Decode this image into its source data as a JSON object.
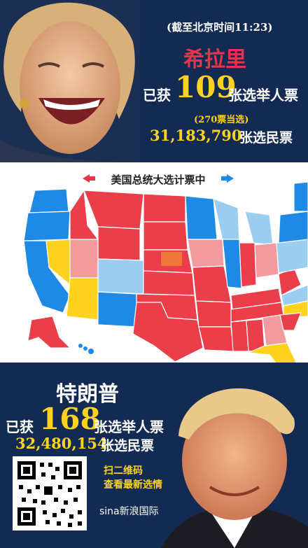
{
  "top": {
    "time_note": "(截至北京时间11:23)",
    "candidate": "希拉里",
    "electoral_prefix": "已获",
    "electoral_votes": "109",
    "electoral_suffix": "张选举人票",
    "threshold_note": "(270票当选)",
    "popular_votes": "31,183,790",
    "popular_suffix": "张选民票"
  },
  "map": {
    "title": "美国总统大选计票中",
    "colors": {
      "dem": "#1f8ae6",
      "lean_dem": "#9bcdf0",
      "rep": "#ea3f4b",
      "lean_rep": "#f29a9e",
      "toss": "#ffd21f"
    }
  },
  "bottom": {
    "candidate": "特朗普",
    "electoral_prefix": "已获",
    "electoral_votes": "168",
    "electoral_suffix": "张选举人票",
    "popular_votes": "32,480,154",
    "popular_suffix": "张选民票",
    "scan_line1": "扫二维码",
    "scan_line2": "查看最新选情",
    "brand": "sina新浪国际"
  }
}
